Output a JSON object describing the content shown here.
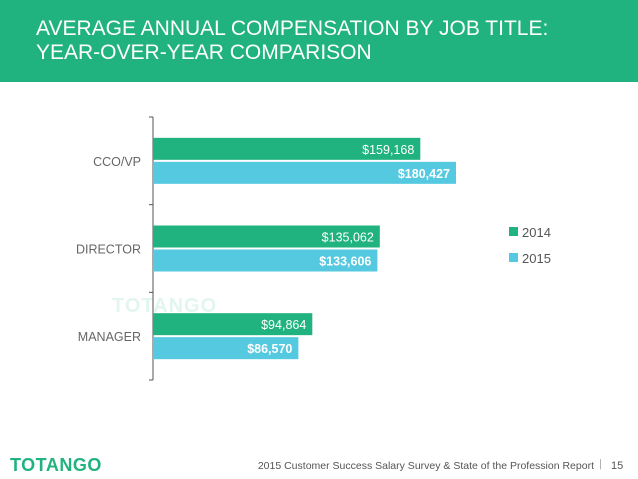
{
  "header": {
    "title_line1": "AVERAGE ANNUAL COMPENSATION BY JOB TITLE:",
    "title_line2": "YEAR-OVER-YEAR COMPARISON"
  },
  "chart_data": {
    "type": "bar",
    "orientation": "horizontal",
    "categories": [
      "CCO/VP",
      "DIRECTOR",
      "MANAGER"
    ],
    "series": [
      {
        "name": "2014",
        "values": [
          159168,
          135062,
          94864
        ],
        "labels": [
          "$159,168",
          "$135,062",
          "$94,864"
        ],
        "color": "#21b37f"
      },
      {
        "name": "2015",
        "values": [
          180427,
          133606,
          86570
        ],
        "labels": [
          "$180,427",
          "$133,606",
          "$86,570"
        ],
        "color": "#54c9e0"
      }
    ],
    "legend_position": "right",
    "grid": false
  },
  "watermark": "TOTANGO",
  "footer": {
    "logo": "TOTANGO",
    "text": "2015 Customer Success Salary Survey & State of the Profession Report",
    "separator": "|",
    "page_number": "15"
  }
}
